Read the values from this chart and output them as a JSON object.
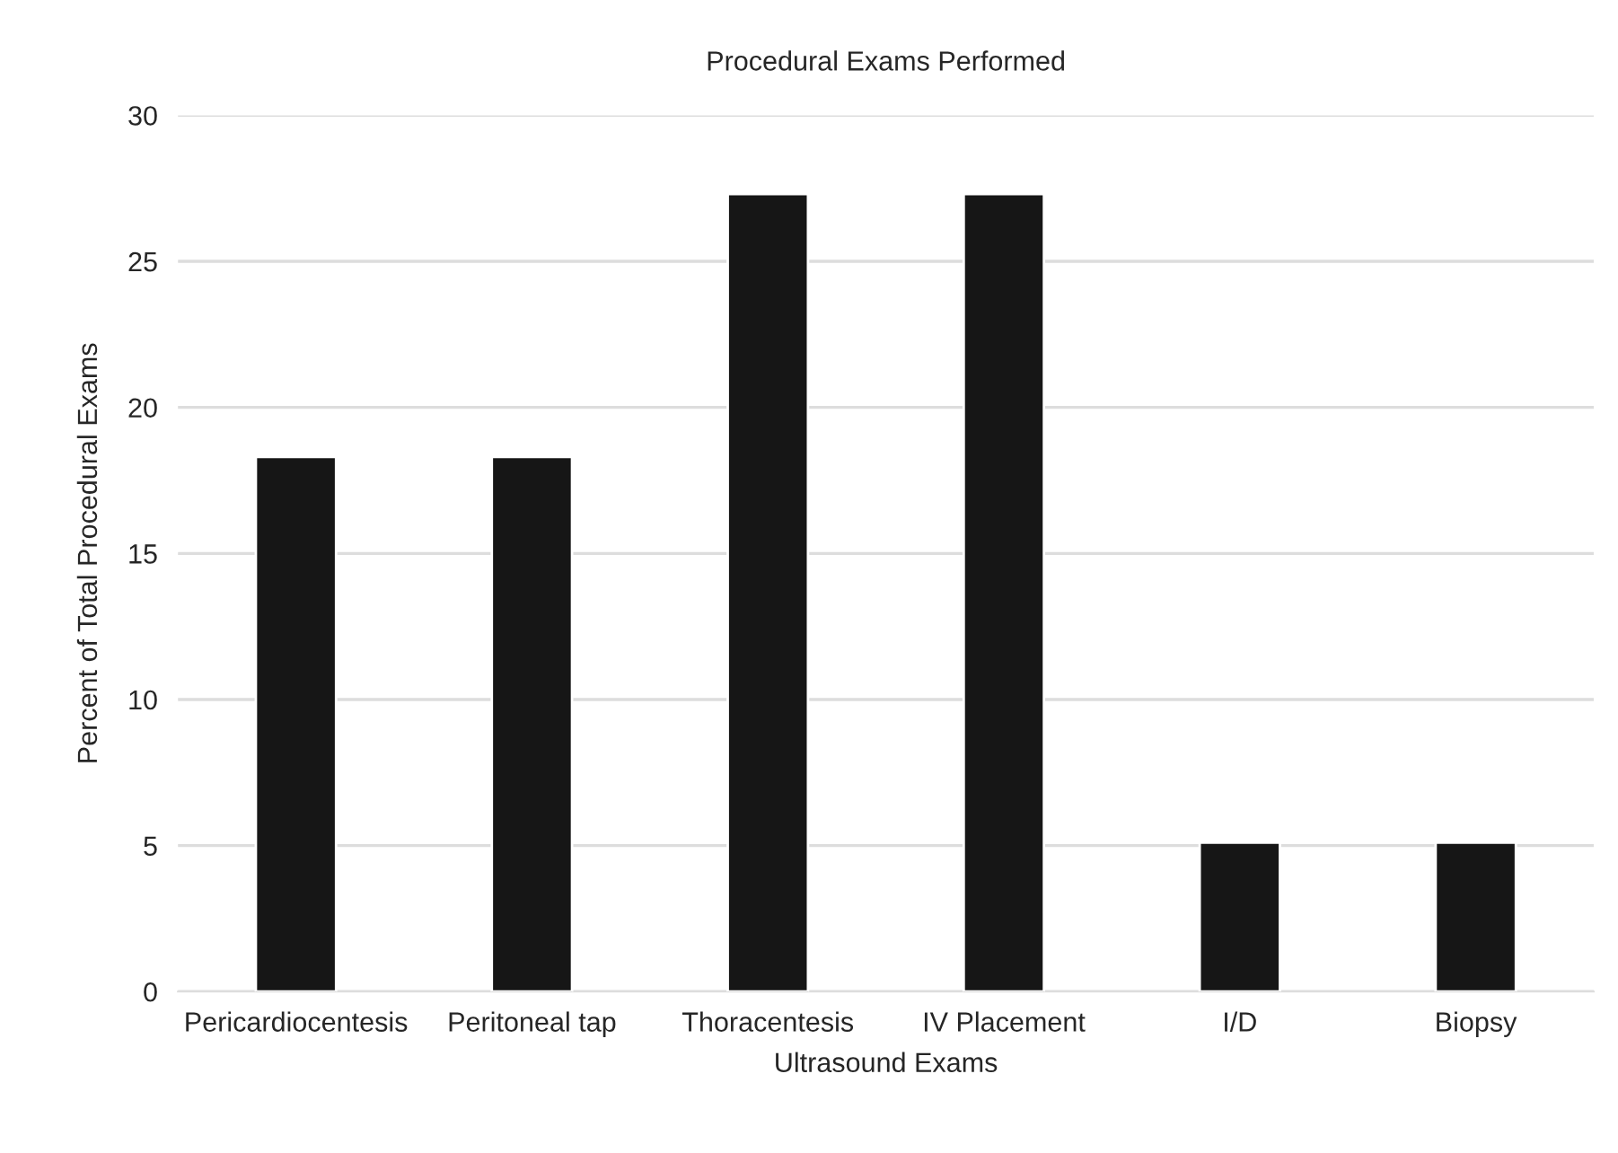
{
  "chart_data": {
    "type": "bar",
    "title": "Procedural Exams Performed",
    "xlabel": "Ultrasound Exams",
    "ylabel": "Percent of Total Procedural Exams",
    "categories": [
      "Pericardiocentesis",
      "Peritoneal tap",
      "Thoracentesis",
      "IV Placement",
      "I/D",
      "Biopsy"
    ],
    "values": [
      18.3,
      18.3,
      27.3,
      27.3,
      5.1,
      5.1
    ],
    "color": "#161616",
    "ylim": [
      0,
      30
    ],
    "yticks": [
      0,
      5,
      10,
      15,
      20,
      25,
      30
    ],
    "grid": "y",
    "legend": false
  }
}
